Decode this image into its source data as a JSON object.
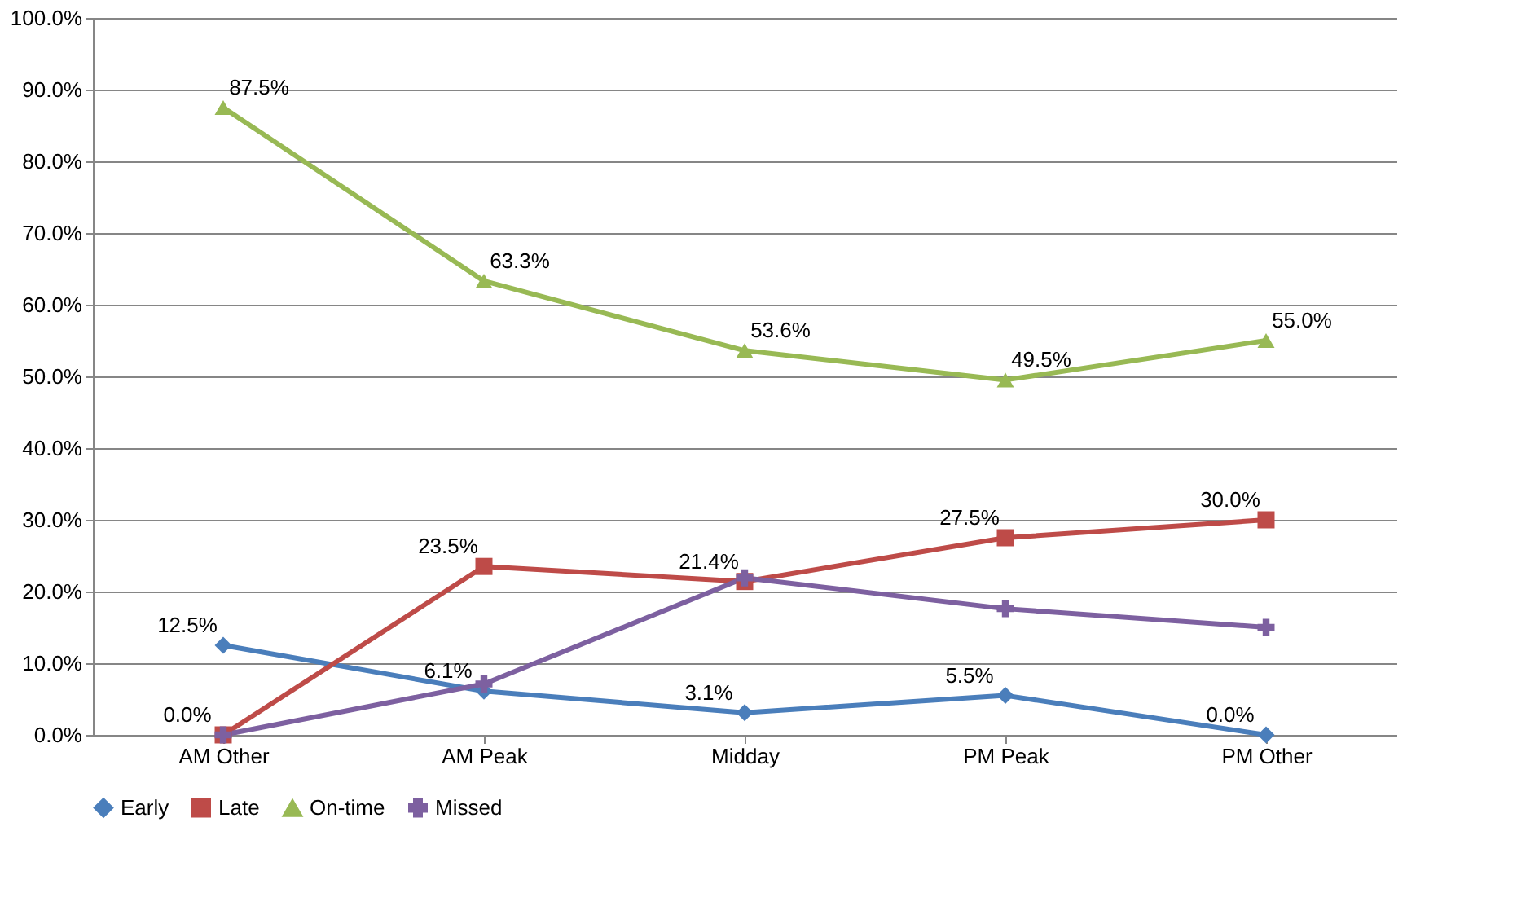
{
  "chart_data": {
    "type": "line",
    "categories": [
      "AM Other",
      "AM Peak",
      "Midday",
      "PM Peak",
      "PM Other"
    ],
    "series": [
      {
        "name": "Early",
        "color": "#4a7ebb",
        "marker": "diamond",
        "values": [
          12.5,
          6.1,
          3.1,
          5.5,
          0.0
        ],
        "value_labels": [
          "12.5%",
          "6.1%",
          "3.1%",
          "5.5%",
          "0.0%"
        ]
      },
      {
        "name": "Late",
        "color": "#be4b48",
        "marker": "square",
        "values": [
          0.0,
          23.5,
          21.4,
          27.5,
          30.0
        ],
        "value_labels": [
          "0.0%",
          "23.5%",
          "21.4%",
          "27.5%",
          "30.0%"
        ]
      },
      {
        "name": "On-time",
        "color": "#98b954",
        "marker": "triangle",
        "values": [
          87.5,
          63.3,
          53.6,
          49.5,
          55.0
        ],
        "value_labels": [
          "87.5%",
          "63.3%",
          "53.6%",
          "49.5%",
          "55.0%"
        ]
      },
      {
        "name": "Missed",
        "color": "#7d60a0",
        "marker": "cross",
        "values": [
          0.0,
          7.1,
          21.9,
          17.6,
          15.0
        ]
      }
    ],
    "ylim": [
      0,
      100
    ],
    "yticks": [
      {
        "value": 0,
        "label": "0.0%"
      },
      {
        "value": 10,
        "label": "10.0%"
      },
      {
        "value": 20,
        "label": "20.0%"
      },
      {
        "value": 30,
        "label": "30.0%"
      },
      {
        "value": 40,
        "label": "40.0%"
      },
      {
        "value": 50,
        "label": "50.0%"
      },
      {
        "value": 60,
        "label": "60.0%"
      },
      {
        "value": 70,
        "label": "70.0%"
      },
      {
        "value": 80,
        "label": "80.0%"
      },
      {
        "value": 90,
        "label": "90.0%"
      },
      {
        "value": 100,
        "label": "100.0%"
      }
    ],
    "grid": "y",
    "legend": "bottom",
    "line_style": "solid"
  }
}
